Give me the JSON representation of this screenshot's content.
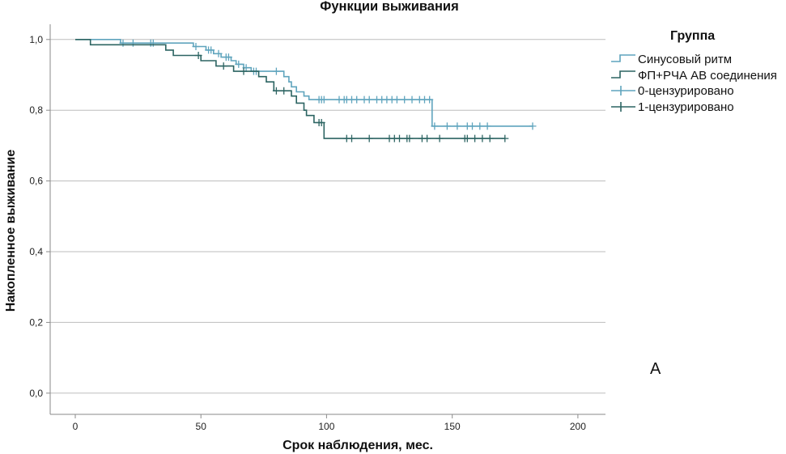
{
  "chart_data": {
    "type": "line",
    "step": true,
    "title": "Функции выживания",
    "xlabel": "Срок наблюдения, мес.",
    "ylabel": "Накопленное выживание",
    "xlim": [
      -10,
      211
    ],
    "ylim": [
      -0.06,
      1.043
    ],
    "xticks": [
      0,
      50,
      100,
      150,
      200
    ],
    "xtick_labels": [
      "0",
      "50",
      "100",
      "150",
      "200"
    ],
    "yticks": [
      0.0,
      0.2,
      0.4,
      0.6,
      0.8,
      1.0
    ],
    "ytick_labels": [
      "0,0",
      "0,2",
      "0,4",
      "0,6",
      "0,8",
      "1,0"
    ],
    "grid": "horizontal",
    "legend": {
      "title": "Группа",
      "position": "right"
    },
    "series": [
      {
        "name": "Синусовый ритм",
        "color": "#5fa4bd",
        "censor_label": "0-цензурировано",
        "steps": [
          [
            0,
            1.0
          ],
          [
            18,
            0.99
          ],
          [
            47,
            0.98
          ],
          [
            52,
            0.97
          ],
          [
            55,
            0.96
          ],
          [
            58,
            0.95
          ],
          [
            62,
            0.94
          ],
          [
            64,
            0.93
          ],
          [
            67,
            0.92
          ],
          [
            70,
            0.91
          ],
          [
            83,
            0.895
          ],
          [
            85,
            0.88
          ],
          [
            86,
            0.866
          ],
          [
            88,
            0.852
          ],
          [
            91,
            0.84
          ],
          [
            93,
            0.83
          ],
          [
            142,
            0.755
          ]
        ],
        "censored": [
          19,
          23,
          30,
          31,
          48,
          53,
          54,
          57,
          60,
          61,
          65,
          68,
          71,
          72,
          80,
          97,
          98,
          99,
          105,
          107,
          108,
          110,
          112,
          115,
          117,
          120,
          122,
          124,
          126,
          128,
          131,
          134,
          137,
          139,
          141,
          143,
          148,
          152,
          156,
          158,
          161,
          164,
          182
        ]
      },
      {
        "name": "ФП+РЧА АВ соединения",
        "color": "#2c6462",
        "censor_label": "1-цензурировано",
        "steps": [
          [
            0,
            1.0
          ],
          [
            6,
            0.985
          ],
          [
            36,
            0.97
          ],
          [
            39,
            0.955
          ],
          [
            50,
            0.94
          ],
          [
            56,
            0.925
          ],
          [
            63,
            0.91
          ],
          [
            73,
            0.895
          ],
          [
            76,
            0.88
          ],
          [
            79,
            0.855
          ],
          [
            86,
            0.84
          ],
          [
            88,
            0.82
          ],
          [
            91,
            0.8
          ],
          [
            92,
            0.785
          ],
          [
            95,
            0.765
          ],
          [
            99,
            0.72
          ]
        ],
        "censored": [
          49,
          59,
          67,
          80,
          83,
          97,
          98,
          108,
          110,
          117,
          125,
          127,
          129,
          132,
          133,
          138,
          140,
          145,
          155,
          156,
          159,
          162,
          165,
          171
        ]
      }
    ],
    "annotations": [
      "А"
    ]
  }
}
